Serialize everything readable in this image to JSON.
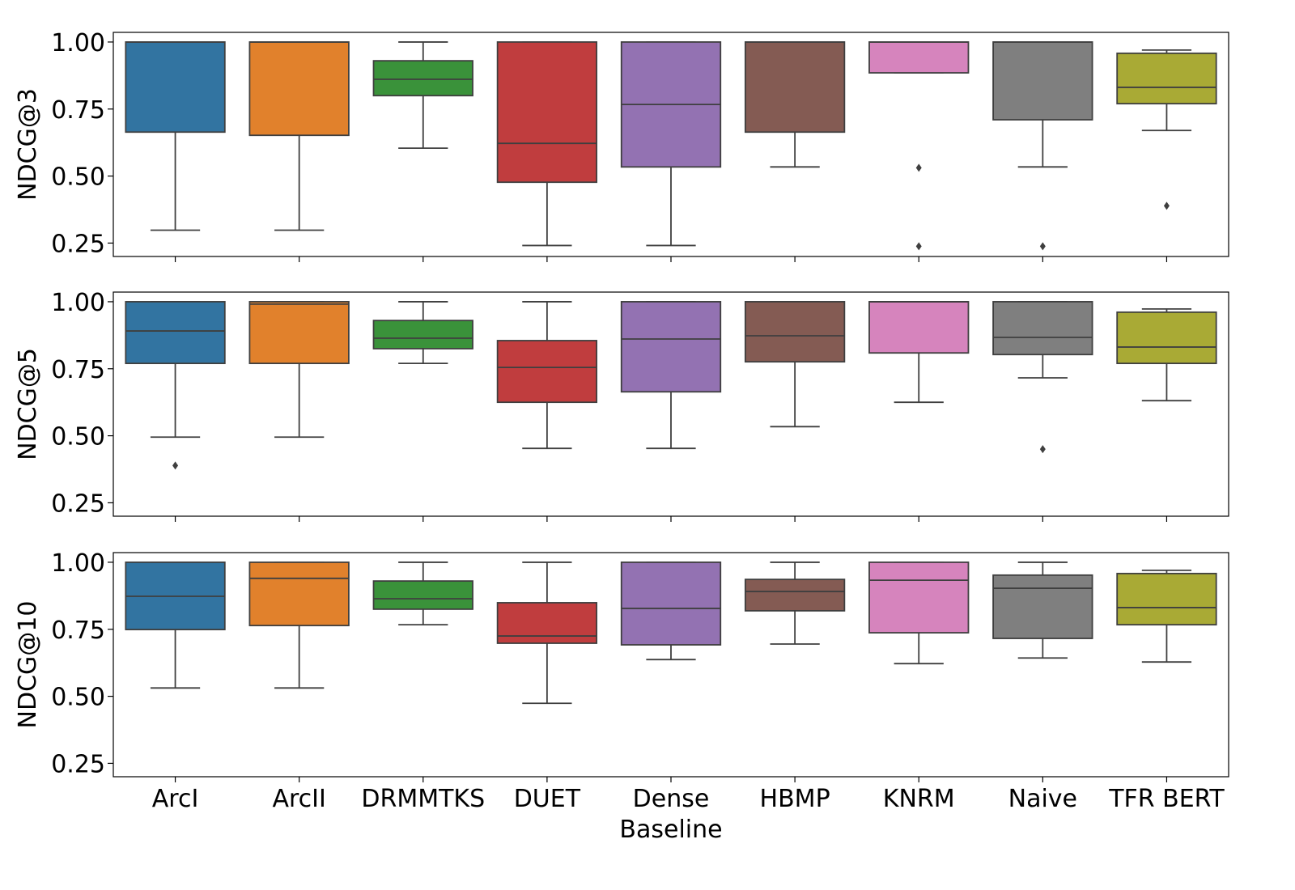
{
  "chart_data": {
    "type": "box",
    "xlabel": "",
    "categories": [
      "ArcI",
      "ArcII",
      "DRMMTKS",
      "DUET",
      "Dense Baseline",
      "HBMP",
      "KNRM",
      "Naive",
      "TFR BERT"
    ],
    "colors": [
      "#3274a1",
      "#e1812c",
      "#3a923a",
      "#c03d3e",
      "#9372b2",
      "#845b53",
      "#d684bd",
      "#7f7f7f",
      "#a9aa35"
    ],
    "yticks": [
      "0.25",
      "0.50",
      "0.75",
      "1.00"
    ],
    "ylim": [
      0.2,
      1.036
    ],
    "grid": false,
    "panels": [
      {
        "ylabel": "NDCG@3",
        "boxes": [
          {
            "low": 0.298,
            "q1": 0.664,
            "median": 1.0,
            "q3": 1.0,
            "high": 1.0,
            "fliers": []
          },
          {
            "low": 0.298,
            "q1": 0.652,
            "median": 1.0,
            "q3": 1.0,
            "high": 1.0,
            "fliers": []
          },
          {
            "low": 0.604,
            "q1": 0.8,
            "median": 0.861,
            "q3": 0.93,
            "high": 1.0,
            "fliers": []
          },
          {
            "low": 0.241,
            "q1": 0.477,
            "median": 0.622,
            "q3": 1.0,
            "high": 1.0,
            "fliers": []
          },
          {
            "low": 0.241,
            "q1": 0.534,
            "median": 0.767,
            "q3": 1.0,
            "high": 1.0,
            "fliers": []
          },
          {
            "low": 0.534,
            "q1": 0.664,
            "median": 1.0,
            "q3": 1.0,
            "high": 1.0,
            "fliers": []
          },
          {
            "low": 0.885,
            "q1": 0.885,
            "median": 1.0,
            "q3": 1.0,
            "high": 1.0,
            "fliers": [
              0.531,
              0.238
            ]
          },
          {
            "low": 0.534,
            "q1": 0.71,
            "median": 1.0,
            "q3": 1.0,
            "high": 1.0,
            "fliers": [
              0.238
            ]
          },
          {
            "low": 0.67,
            "q1": 0.77,
            "median": 0.831,
            "q3": 0.958,
            "high": 0.97,
            "fliers": [
              0.389
            ]
          }
        ]
      },
      {
        "ylabel": "NDCG@5",
        "boxes": [
          {
            "low": 0.495,
            "q1": 0.77,
            "median": 0.891,
            "q3": 1.0,
            "high": 1.0,
            "fliers": [
              0.389
            ]
          },
          {
            "low": 0.495,
            "q1": 0.77,
            "median": 0.991,
            "q3": 1.0,
            "high": 1.0,
            "fliers": []
          },
          {
            "low": 0.77,
            "q1": 0.825,
            "median": 0.864,
            "q3": 0.93,
            "high": 1.0,
            "fliers": []
          },
          {
            "low": 0.453,
            "q1": 0.625,
            "median": 0.755,
            "q3": 0.855,
            "high": 1.0,
            "fliers": []
          },
          {
            "low": 0.453,
            "q1": 0.664,
            "median": 0.861,
            "q3": 1.0,
            "high": 1.0,
            "fliers": []
          },
          {
            "low": 0.534,
            "q1": 0.776,
            "median": 0.873,
            "q3": 1.0,
            "high": 1.0,
            "fliers": []
          },
          {
            "low": 0.625,
            "q1": 0.809,
            "median": 1.0,
            "q3": 1.0,
            "high": 1.0,
            "fliers": []
          },
          {
            "low": 0.716,
            "q1": 0.803,
            "median": 0.867,
            "q3": 1.0,
            "high": 1.0,
            "fliers": [
              0.45
            ]
          },
          {
            "low": 0.631,
            "q1": 0.77,
            "median": 0.831,
            "q3": 0.961,
            "high": 0.973,
            "fliers": []
          }
        ]
      },
      {
        "ylabel": "NDCG@10",
        "boxes": [
          {
            "low": 0.531,
            "q1": 0.749,
            "median": 0.873,
            "q3": 1.0,
            "high": 1.0,
            "fliers": []
          },
          {
            "low": 0.531,
            "q1": 0.764,
            "median": 0.94,
            "q3": 1.0,
            "high": 1.0,
            "fliers": []
          },
          {
            "low": 0.767,
            "q1": 0.825,
            "median": 0.864,
            "q3": 0.93,
            "high": 1.0,
            "fliers": []
          },
          {
            "low": 0.474,
            "q1": 0.698,
            "median": 0.725,
            "q3": 0.849,
            "high": 1.0,
            "fliers": []
          },
          {
            "low": 0.637,
            "q1": 0.692,
            "median": 0.828,
            "q3": 1.0,
            "high": 1.0,
            "fliers": []
          },
          {
            "low": 0.695,
            "q1": 0.819,
            "median": 0.891,
            "q3": 0.936,
            "high": 1.0,
            "fliers": []
          },
          {
            "low": 0.622,
            "q1": 0.737,
            "median": 0.933,
            "q3": 1.0,
            "high": 1.0,
            "fliers": []
          },
          {
            "low": 0.643,
            "q1": 0.716,
            "median": 0.903,
            "q3": 0.952,
            "high": 1.0,
            "fliers": []
          },
          {
            "low": 0.628,
            "q1": 0.767,
            "median": 0.831,
            "q3": 0.958,
            "high": 0.97,
            "fliers": []
          }
        ]
      }
    ]
  }
}
